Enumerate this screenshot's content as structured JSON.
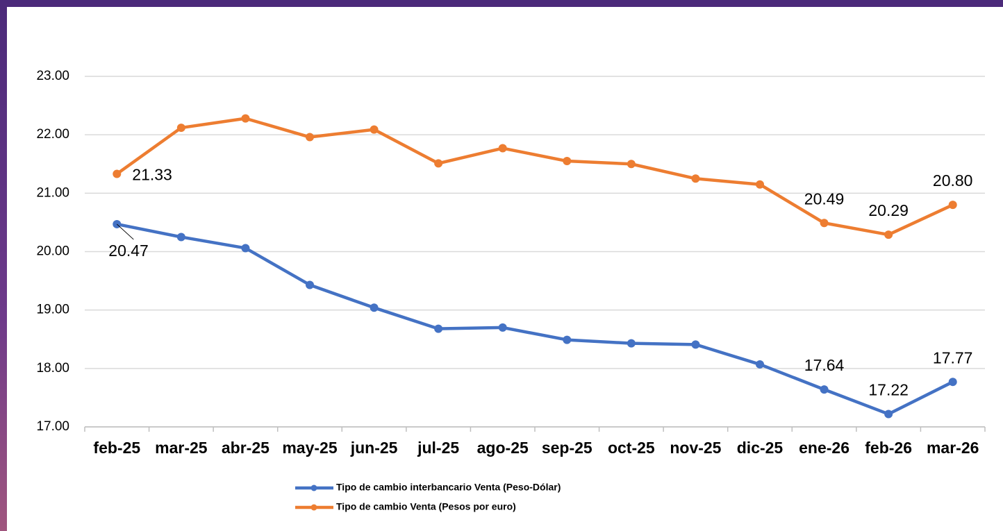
{
  "chart_data": {
    "type": "line",
    "categories": [
      "feb-25",
      "mar-25",
      "abr-25",
      "may-25",
      "jun-25",
      "jul-25",
      "ago-25",
      "sep-25",
      "oct-25",
      "nov-25",
      "dic-25",
      "ene-26",
      "feb-26",
      "mar-26"
    ],
    "series": [
      {
        "name": "Tipo de cambio interbancario Venta (Peso-Dólar)",
        "color": "#4472c4",
        "values": [
          20.47,
          20.25,
          20.06,
          19.43,
          19.04,
          18.68,
          18.7,
          18.49,
          18.43,
          18.41,
          18.07,
          17.64,
          17.22,
          17.77
        ],
        "value_labels": [
          "20.47",
          null,
          null,
          null,
          null,
          null,
          null,
          null,
          null,
          null,
          null,
          "17.64",
          "17.22",
          "17.77"
        ]
      },
      {
        "name": "Tipo de cambio Venta (Pesos por euro)",
        "color": "#ed7d31",
        "values": [
          21.33,
          22.12,
          22.28,
          21.96,
          22.09,
          21.51,
          21.77,
          21.55,
          21.5,
          21.25,
          21.15,
          20.49,
          20.29,
          20.8
        ],
        "value_labels": [
          "21.33",
          null,
          null,
          null,
          null,
          null,
          null,
          null,
          null,
          null,
          null,
          "20.49",
          "20.29",
          "20.80"
        ]
      }
    ],
    "ylim": [
      17,
      23
    ],
    "yticks": [
      {
        "value": 17,
        "label": "17.00"
      },
      {
        "value": 18,
        "label": "18.00"
      },
      {
        "value": 19,
        "label": "19.00"
      },
      {
        "value": 20,
        "label": "20.00"
      },
      {
        "value": 21,
        "label": "21.00"
      },
      {
        "value": 22,
        "label": "22.00"
      },
      {
        "value": 23,
        "label": "23.00"
      }
    ],
    "grid": true,
    "legend": "bottom"
  }
}
